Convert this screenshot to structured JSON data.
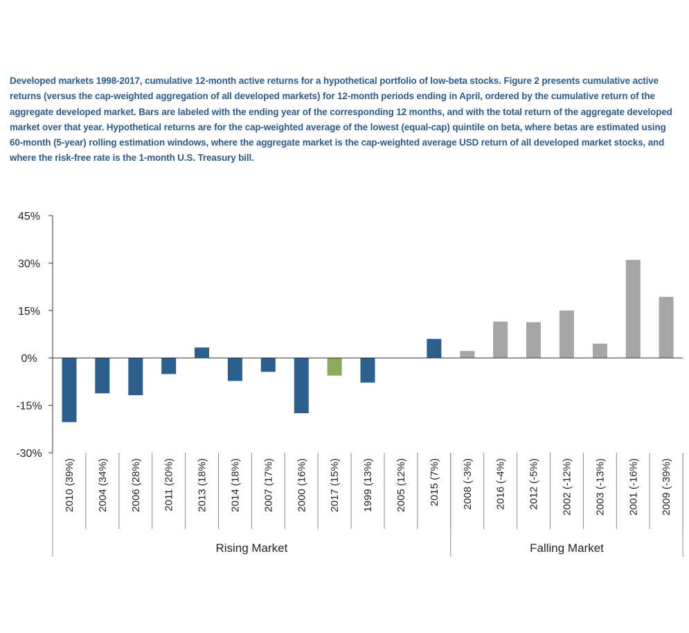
{
  "caption": "Developed markets 1998-2017, cumulative 12-month active returns for a hypothetical portfolio of low-beta stocks. Figure 2 presents cumulative active returns (versus the cap-weighted aggregation of all developed markets) for 12-month periods ending in April, ordered by the cumulative return of the aggregate developed market. Bars are labeled with the ending year of the corresponding 12 months, and with the total return of the aggregate developed market over that year. Hypothetical returns are for the cap-weighted average of the lowest (equal-cap) quintile on beta, where betas are estimated using 60-month (5-year) rolling estimation windows, where the aggregate market is the cap-weighted average USD return of all developed market stocks, and where the risk-free rate is the 1-month U.S. Treasury bill.",
  "colors": {
    "rising": "#2d5f8e",
    "highlight": "#8bab5a",
    "falling": "#a6a6a6"
  },
  "chart_data": {
    "type": "bar",
    "ylim": [
      -30,
      45
    ],
    "ytick_values": [
      45,
      30,
      15,
      0,
      -15,
      -30
    ],
    "ytick_labels": [
      "45%",
      "30%",
      "15%",
      "0%",
      "-15%",
      "-30%"
    ],
    "categories": [
      "2010 (39%)",
      "2004 (34%)",
      "2006 (28%)",
      "2011 (20%)",
      "2013 (18%)",
      "2014 (18%)",
      "2007 (17%)",
      "2000 (16%)",
      "2017 (15%)",
      "1999 (13%)",
      "2005 (12%)",
      "2015 (7%)",
      "2008 (-3%)",
      "2016 (-4%)",
      "2012 (-5%)",
      "2002 (-12%)",
      "2003 (-13%)",
      "2001 (-16%)",
      "2009 (-39%)"
    ],
    "values": [
      -20.3,
      -11.2,
      -11.8,
      -5.1,
      3.3,
      -7.3,
      -4.4,
      -17.5,
      -5.6,
      -7.8,
      0,
      6,
      2.2,
      11.5,
      11.3,
      15,
      4.5,
      31,
      19.3
    ],
    "groups": [
      {
        "label": "Rising Market",
        "count": 12
      },
      {
        "label": "Falling Market",
        "count": 7
      }
    ],
    "highlight_category": "2017 (15%)"
  }
}
